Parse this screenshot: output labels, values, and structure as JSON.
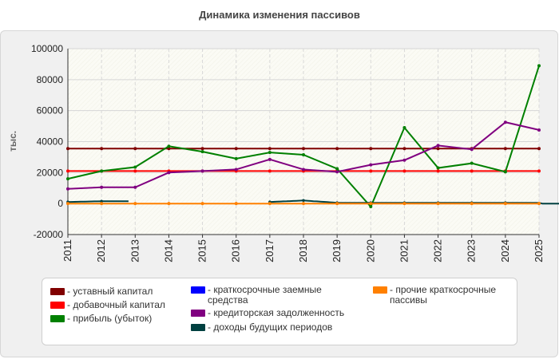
{
  "chart_data": {
    "type": "line",
    "title": "Динамика изменения пассивов",
    "ylabel": "тыс.",
    "xlabel": "",
    "ylim": [
      -20000,
      100000
    ],
    "yticks": [
      -20000,
      0,
      20000,
      40000,
      60000,
      80000,
      100000
    ],
    "categories": [
      "2011",
      "2012",
      "2013",
      "2014",
      "2015",
      "2016",
      "2017",
      "2018",
      "2019",
      "2020",
      "2021",
      "2022",
      "2023",
      "2024",
      "2025"
    ],
    "grid": true,
    "legend_position": "bottom",
    "series": [
      {
        "name": "уставный капитал",
        "color": "#800000",
        "values": [
          35500,
          35500,
          35500,
          35500,
          35500,
          35500,
          35500,
          35500,
          35500,
          35500,
          35500,
          35500,
          35500,
          35500,
          35500
        ]
      },
      {
        "name": "добавочный капитал",
        "color": "#ff0000",
        "values": [
          21000,
          21000,
          21000,
          21000,
          21000,
          21000,
          21000,
          21000,
          21000,
          21000,
          21000,
          21000,
          21000,
          21000,
          21000
        ]
      },
      {
        "name": "прибыль (убыток)",
        "color": "#008000",
        "values": [
          16000,
          21000,
          23500,
          37000,
          33500,
          29000,
          33000,
          31500,
          22500,
          -2000,
          49000,
          23000,
          26000,
          20500,
          89000
        ]
      },
      {
        "name": "краткосрочные заемные средства",
        "color": "#0000ff",
        "values": [
          null,
          null,
          null,
          null,
          null,
          null,
          null,
          null,
          null,
          null,
          null,
          null,
          null,
          null,
          null
        ]
      },
      {
        "name": "кредиторская задолженность",
        "color": "#800080",
        "values": [
          9500,
          10500,
          10500,
          20000,
          21000,
          22000,
          28500,
          22000,
          20500,
          25000,
          28000,
          37500,
          35000,
          52500,
          47500
        ]
      },
      {
        "name": "доходы будущих периодов",
        "color": "#004040",
        "values": [
          1000,
          1500,
          null,
          null,
          null,
          null,
          1000,
          2000,
          500,
          500,
          500,
          500,
          500,
          500,
          null
        ],
        "segments": [
          [
            0,
            1.8
          ],
          [
            6,
            14.8
          ]
        ]
      },
      {
        "name": "прочие краткосрочные пассивы",
        "color": "#ff8000",
        "values": [
          0,
          0,
          0,
          0,
          0,
          0,
          0,
          0,
          0,
          0,
          0,
          0,
          0,
          0,
          0
        ]
      }
    ]
  }
}
